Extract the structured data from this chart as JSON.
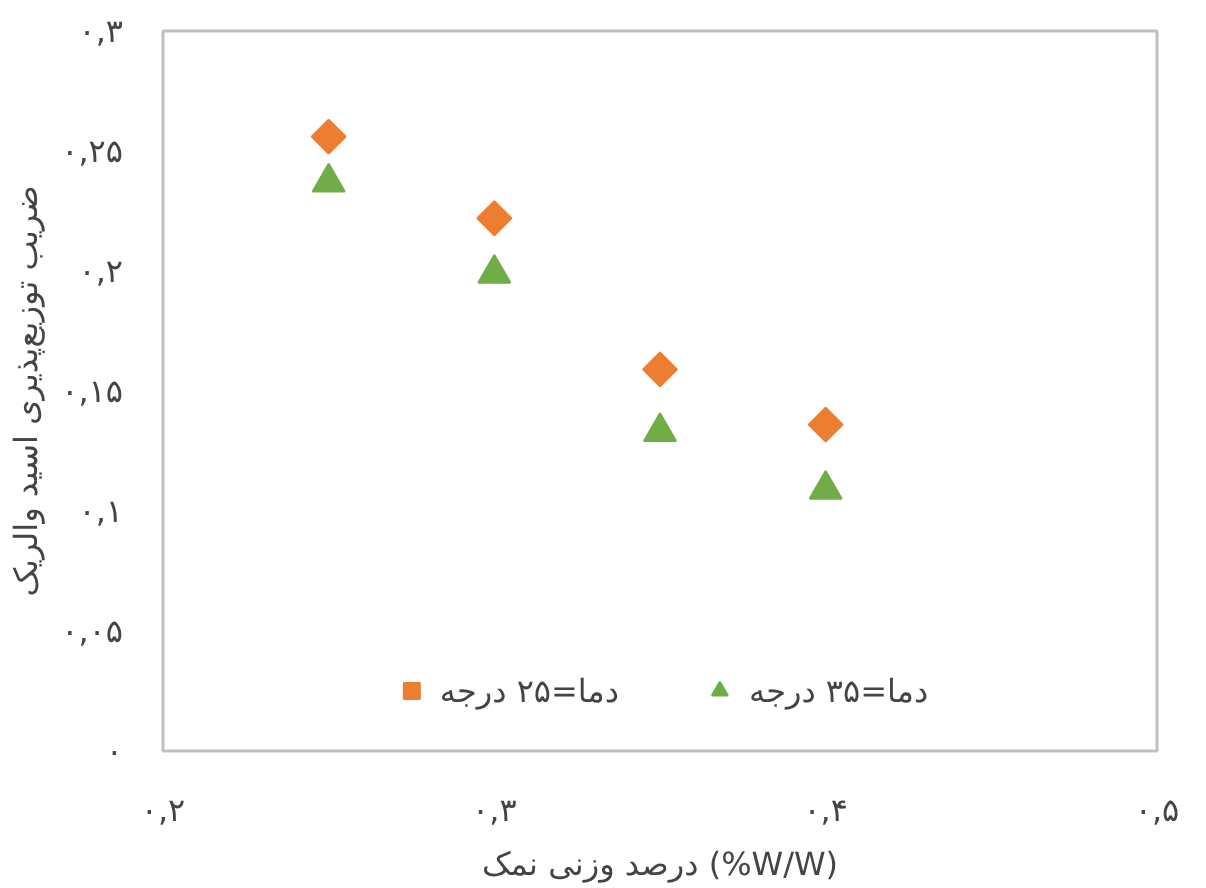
{
  "chart_data": {
    "type": "scatter",
    "xlabel": "درصد وزنی نمک (%W/W)",
    "ylabel": "ضریب توزیع‌پذیری اسید والریک",
    "x": [
      0.25,
      0.3,
      0.35,
      0.4
    ],
    "series": [
      {
        "name": "دما=۲۵ درجه",
        "color": "#ed7d31",
        "marker": "diamond",
        "values": [
          0.256,
          0.222,
          0.159,
          0.136
        ]
      },
      {
        "name": "دما=۳۵ درجه",
        "color": "#70ad47",
        "marker": "triangle",
        "values": [
          0.237,
          0.199,
          0.133,
          0.109
        ]
      }
    ],
    "xlim": [
      0.2,
      0.5
    ],
    "ylim": [
      0,
      0.3
    ],
    "xticks": [
      {
        "value": 0.2,
        "label": "۰,۲"
      },
      {
        "value": 0.3,
        "label": "۰,۳"
      },
      {
        "value": 0.4,
        "label": "۰,۴"
      },
      {
        "value": 0.5,
        "label": "۰,۵"
      }
    ],
    "yticks": [
      {
        "value": 0,
        "label": "۰"
      },
      {
        "value": 0.05,
        "label": "۰,۰۵"
      },
      {
        "value": 0.1,
        "label": "۰,۱"
      },
      {
        "value": 0.15,
        "label": "۰,۱۵"
      },
      {
        "value": 0.2,
        "label": "۰,۲"
      },
      {
        "value": 0.25,
        "label": "۰,۲۵"
      },
      {
        "value": 0.3,
        "label": "۰,۳"
      }
    ],
    "grid": false,
    "legend": "bottom"
  }
}
